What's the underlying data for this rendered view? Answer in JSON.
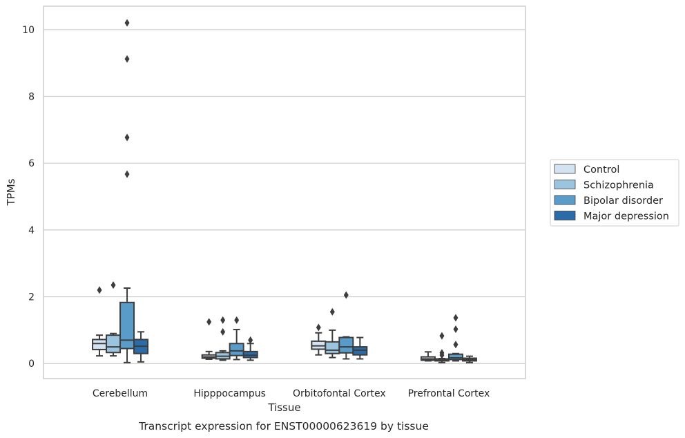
{
  "chart_data": {
    "type": "box",
    "title": "",
    "caption": "Transcript expression for ENST00000623619 by tissue",
    "xlabel": "Tissue",
    "ylabel": "TPMs",
    "ylim": [
      -0.45,
      10.7
    ],
    "yticks": [
      0,
      2,
      4,
      6,
      8,
      10
    ],
    "grid": "horizontal",
    "legend_position": "right",
    "categories": [
      "Cerebellum",
      "Hipppocampus",
      "Orbitofontal Cortex",
      "Prefrontal Cortex"
    ],
    "series": [
      {
        "name": "Control",
        "color": "#d4e3f2",
        "boxes": [
          {
            "whisker_low": 0.23,
            "q1": 0.42,
            "median": 0.6,
            "q3": 0.72,
            "whisker_high": 0.85,
            "outliers": [
              2.2
            ]
          },
          {
            "whisker_low": 0.13,
            "q1": 0.16,
            "median": 0.2,
            "q3": 0.26,
            "whisker_high": 0.36,
            "outliers": [
              1.25
            ]
          },
          {
            "whisker_low": 0.26,
            "q1": 0.43,
            "median": 0.53,
            "q3": 0.67,
            "whisker_high": 0.92,
            "outliers": [
              1.08
            ]
          },
          {
            "whisker_low": 0.08,
            "q1": 0.1,
            "median": 0.14,
            "q3": 0.2,
            "whisker_high": 0.35,
            "outliers": []
          }
        ]
      },
      {
        "name": "Schizophrenia",
        "color": "#9bc4de",
        "boxes": [
          {
            "whisker_low": 0.23,
            "q1": 0.33,
            "median": 0.5,
            "q3": 0.85,
            "whisker_high": 0.9,
            "outliers": [
              2.35
            ]
          },
          {
            "whisker_low": 0.1,
            "q1": 0.14,
            "median": 0.22,
            "q3": 0.33,
            "whisker_high": 0.38,
            "outliers": [
              0.95,
              1.3
            ]
          },
          {
            "whisker_low": 0.18,
            "q1": 0.3,
            "median": 0.4,
            "q3": 0.65,
            "whisker_high": 1.0,
            "outliers": [
              1.55
            ]
          },
          {
            "whisker_low": 0.03,
            "q1": 0.08,
            "median": 0.1,
            "q3": 0.14,
            "whisker_high": 0.15,
            "outliers": [
              0.25,
              0.32,
              0.83
            ]
          }
        ]
      },
      {
        "name": "Bipolar disorder",
        "color": "#5a9cc9",
        "boxes": [
          {
            "whisker_low": 0.03,
            "q1": 0.45,
            "median": 0.7,
            "q3": 1.83,
            "whisker_high": 2.26,
            "outliers": [
              5.67,
              6.77,
              9.12,
              10.2
            ]
          },
          {
            "whisker_low": 0.12,
            "q1": 0.24,
            "median": 0.38,
            "q3": 0.6,
            "whisker_high": 1.02,
            "outliers": [
              1.3
            ]
          },
          {
            "whisker_low": 0.14,
            "q1": 0.32,
            "median": 0.5,
            "q3": 0.78,
            "whisker_high": 0.8,
            "outliers": [
              2.05
            ]
          },
          {
            "whisker_low": 0.08,
            "q1": 0.12,
            "median": 0.17,
            "q3": 0.28,
            "whisker_high": 0.3,
            "outliers": [
              0.57,
              1.03,
              1.37
            ]
          }
        ]
      },
      {
        "name": "Major depression",
        "color": "#2b6ba8",
        "boxes": [
          {
            "whisker_low": 0.05,
            "q1": 0.3,
            "median": 0.52,
            "q3": 0.72,
            "whisker_high": 0.95,
            "outliers": []
          },
          {
            "whisker_low": 0.1,
            "q1": 0.18,
            "median": 0.25,
            "q3": 0.36,
            "whisker_high": 0.6,
            "outliers": [
              0.7
            ]
          },
          {
            "whisker_low": 0.14,
            "q1": 0.26,
            "median": 0.4,
            "q3": 0.5,
            "whisker_high": 0.78,
            "outliers": []
          },
          {
            "whisker_low": 0.03,
            "q1": 0.08,
            "median": 0.12,
            "q3": 0.16,
            "whisker_high": 0.22,
            "outliers": []
          }
        ]
      }
    ]
  }
}
